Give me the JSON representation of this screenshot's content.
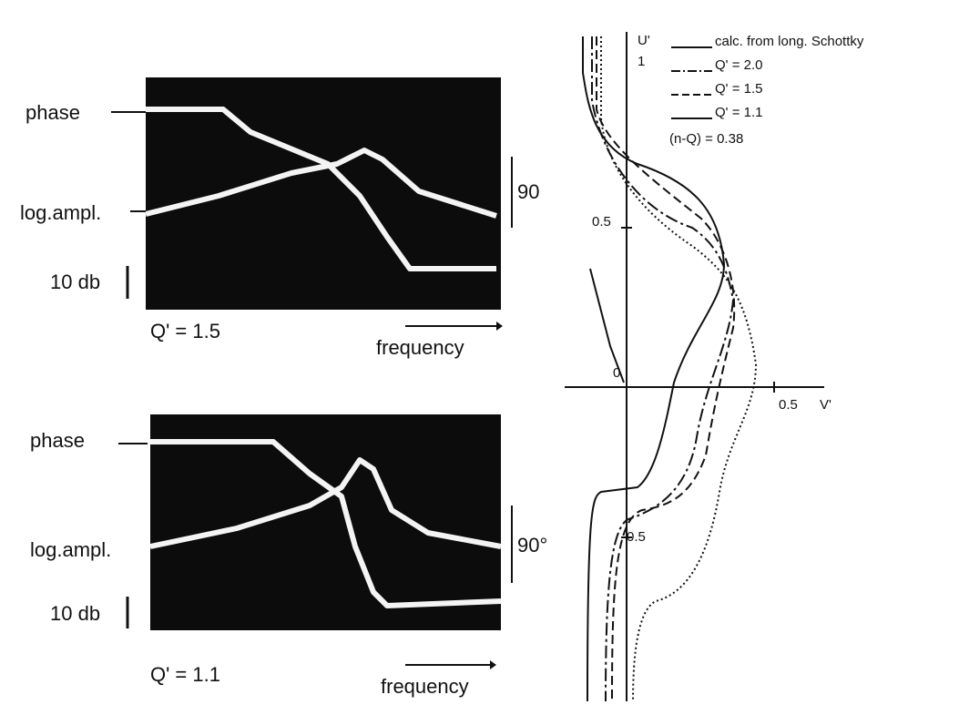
{
  "panels": [
    {
      "phase_label": "phase",
      "amplitude_label": "log.ampl.",
      "scale_label": "10 db",
      "q_label": "Q' = 1.5",
      "frequency_label": "frequency",
      "angle_label": "90"
    },
    {
      "phase_label": "phase",
      "amplitude_label": "log.ampl.",
      "scale_label": "10 db",
      "q_label": "Q' = 1.1",
      "frequency_label": "frequency",
      "angle_label": "90°"
    }
  ],
  "plot": {
    "y_axis_label": "U'",
    "y_ticks": [
      "1",
      "0.5",
      "0",
      "-0.5"
    ],
    "x_ticks": [
      "0.5"
    ],
    "x_axis_label": "V'",
    "legend": [
      "calc. from long. Schottky",
      "Q' = 2.0",
      "Q' = 1.5",
      "Q' = 1.1"
    ],
    "parameter": "(n-Q) = 0.38"
  }
}
